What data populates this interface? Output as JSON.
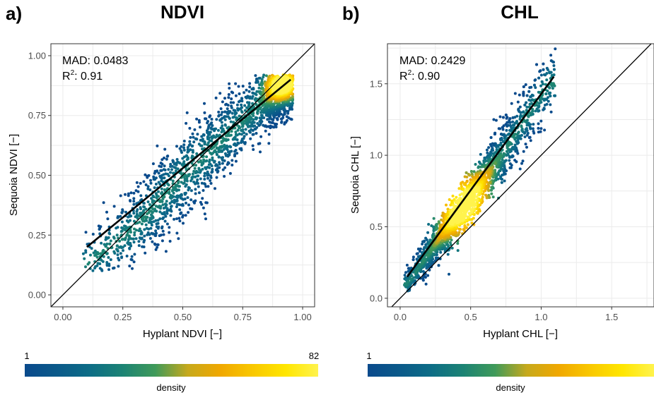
{
  "chart_data": [
    {
      "type": "scatter",
      "panel_label": "a)",
      "title": "NDVI",
      "xlabel": "Hyplant NDVI [−]",
      "ylabel": "Sequoia NDVI [−]",
      "xlim": [
        -0.05,
        1.05
      ],
      "ylim": [
        -0.05,
        1.05
      ],
      "x_ticks": [
        0.0,
        0.25,
        0.5,
        0.75,
        1.0
      ],
      "x_tick_labels": [
        "0.00",
        "0.25",
        "0.50",
        "0.75",
        "1.00"
      ],
      "y_ticks": [
        0.0,
        0.25,
        0.5,
        0.75,
        1.0
      ],
      "y_tick_labels": [
        "0.00",
        "0.25",
        "0.50",
        "0.75",
        "1.00"
      ],
      "grid": true,
      "annotations": {
        "mad": "MAD: 0.0483",
        "r2_prefix": "R",
        "r2_sup": "2",
        "r2_value": ": 0.91"
      },
      "point_cloud": {
        "density_ridge": [
          [
            0.1,
            0.13
          ],
          [
            0.3,
            0.28
          ],
          [
            0.5,
            0.5
          ],
          [
            0.7,
            0.68
          ],
          [
            0.85,
            0.82
          ],
          [
            0.92,
            0.88
          ]
        ],
        "dense_core": [
          0.91,
          0.88
        ],
        "x_range": [
          0.08,
          0.96
        ],
        "y_range": [
          0.1,
          0.92
        ]
      },
      "fit_line": [
        [
          0.1,
          0.2
        ],
        [
          0.95,
          0.9
        ]
      ],
      "identity_line": true,
      "colorbar": {
        "min_label": "1",
        "max_label": "82",
        "title": "density",
        "min": 1,
        "max": 82
      }
    },
    {
      "type": "scatter",
      "panel_label": "b)",
      "title": "CHL",
      "xlabel": "Hyplant CHL [−]",
      "ylabel": "Sequoia CHL [−]",
      "xlim": [
        -0.09,
        1.8
      ],
      "ylim": [
        -0.06,
        1.78
      ],
      "x_ticks": [
        0.0,
        0.5,
        1.0,
        1.5
      ],
      "x_tick_labels": [
        "0.0",
        "0.5",
        "1.0",
        "1.5"
      ],
      "y_ticks": [
        0.0,
        0.5,
        1.0,
        1.5
      ],
      "y_tick_labels": [
        "0.0",
        "0.5",
        "1.0",
        "1.5"
      ],
      "grid": true,
      "annotations": {
        "mad": "MAD: 0.2429",
        "r2_prefix": "R",
        "r2_sup": "2",
        "r2_value": ": 0.90"
      },
      "point_cloud": {
        "density_ridge": [
          [
            0.05,
            0.1
          ],
          [
            0.3,
            0.45
          ],
          [
            0.5,
            0.7
          ],
          [
            0.75,
            1.05
          ],
          [
            1.05,
            1.5
          ]
        ],
        "dense_core": [
          0.45,
          0.65
        ],
        "x_range": [
          0.03,
          1.1
        ],
        "y_range": [
          0.03,
          1.75
        ]
      },
      "fit_line": [
        [
          0.05,
          0.15
        ],
        [
          1.09,
          1.55
        ]
      ],
      "identity_line": true,
      "colorbar": {
        "min_label": "1",
        "title": "density",
        "min": 1
      }
    }
  ],
  "colors": {
    "palette": [
      "#0a4a8c",
      "#0b5a8a",
      "#0d6d86",
      "#1c8374",
      "#3f9a5a",
      "#c6a91c",
      "#f0a800",
      "#f9c800",
      "#ffe600",
      "#fff34d"
    ],
    "fit_line": "#000000",
    "identity_line": "#000000",
    "grid": "#ebebeb",
    "panel_border": "#333333"
  }
}
